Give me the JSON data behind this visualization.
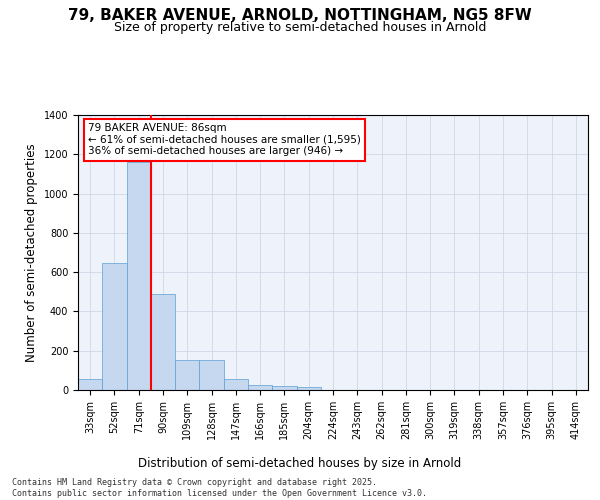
{
  "title_line1": "79, BAKER AVENUE, ARNOLD, NOTTINGHAM, NG5 8FW",
  "title_line2": "Size of property relative to semi-detached houses in Arnold",
  "xlabel": "Distribution of semi-detached houses by size in Arnold",
  "ylabel": "Number of semi-detached properties",
  "categories": [
    "33sqm",
    "52sqm",
    "71sqm",
    "90sqm",
    "109sqm",
    "128sqm",
    "147sqm",
    "166sqm",
    "185sqm",
    "204sqm",
    "224sqm",
    "243sqm",
    "262sqm",
    "281sqm",
    "300sqm",
    "319sqm",
    "338sqm",
    "357sqm",
    "376sqm",
    "395sqm",
    "414sqm"
  ],
  "values": [
    55,
    645,
    1160,
    490,
    155,
    155,
    58,
    28,
    20,
    15,
    0,
    0,
    0,
    0,
    0,
    0,
    0,
    0,
    0,
    0,
    0
  ],
  "bar_color": "#c5d8f0",
  "bar_edge_color": "#5a9fd4",
  "grid_color": "#d0d8e8",
  "background_color": "#eef2fa",
  "vline_color": "red",
  "vline_index": 2.5,
  "annotation_text": "79 BAKER AVENUE: 86sqm\n← 61% of semi-detached houses are smaller (1,595)\n36% of semi-detached houses are larger (946) →",
  "annotation_box_color": "white",
  "annotation_box_edge": "red",
  "ylim": [
    0,
    1400
  ],
  "yticks": [
    0,
    200,
    400,
    600,
    800,
    1000,
    1200,
    1400
  ],
  "footnote": "Contains HM Land Registry data © Crown copyright and database right 2025.\nContains public sector information licensed under the Open Government Licence v3.0.",
  "title_fontsize": 11,
  "subtitle_fontsize": 9,
  "axis_label_fontsize": 8.5,
  "tick_fontsize": 7,
  "annotation_fontsize": 7.5,
  "footnote_fontsize": 6
}
